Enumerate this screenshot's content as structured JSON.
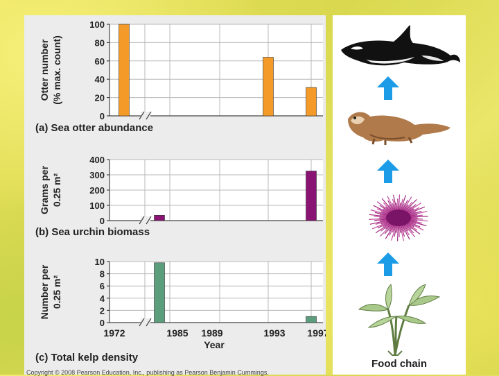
{
  "colors": {
    "otter_bar": "#f39a28",
    "urchin_bar": "#8a1473",
    "kelp_bar": "#5c9d7e",
    "arrow": "#1c9be6"
  },
  "chart_data": [
    {
      "type": "bar",
      "categories": [
        "1972",
        "1985",
        "1989",
        "1993",
        "1997"
      ],
      "values": [
        100,
        0,
        0,
        64,
        31
      ],
      "ylabel": "Otter number (% max. count)",
      "caption": "(a) Sea otter abundance",
      "ylim": [
        0,
        100
      ],
      "yticks": [
        0,
        20,
        40,
        60,
        80,
        100
      ],
      "axis_break": true,
      "grid": true
    },
    {
      "type": "bar",
      "categories": [
        "1972",
        "1985",
        "1989",
        "1993",
        "1997"
      ],
      "values": [
        0,
        35,
        0,
        0,
        325
      ],
      "ylabel": "Grams per 0.25 m²",
      "caption": "(b) Sea urchin biomass",
      "ylim": [
        0,
        400
      ],
      "yticks": [
        0,
        100,
        200,
        300,
        400
      ],
      "axis_break": true,
      "grid": true
    },
    {
      "type": "bar",
      "categories": [
        "1972",
        "1985",
        "1989",
        "1993",
        "1997"
      ],
      "values": [
        0,
        9.8,
        0,
        0,
        1
      ],
      "ylabel": "Number per 0.25 m²",
      "caption": "(c) Total kelp density",
      "xlabel": "Year",
      "ylim": [
        0,
        10
      ],
      "yticks": [
        0,
        2,
        4,
        6,
        8,
        10
      ],
      "axis_break": true,
      "grid": true
    }
  ],
  "food_chain": {
    "label": "Food chain",
    "items": [
      "orca-icon",
      "sea-otter-icon",
      "sea-urchin-icon",
      "kelp-icon"
    ]
  },
  "copyright": "Copyright © 2008 Pearson Education, Inc., publishing as Pearson Benjamin Cummings."
}
